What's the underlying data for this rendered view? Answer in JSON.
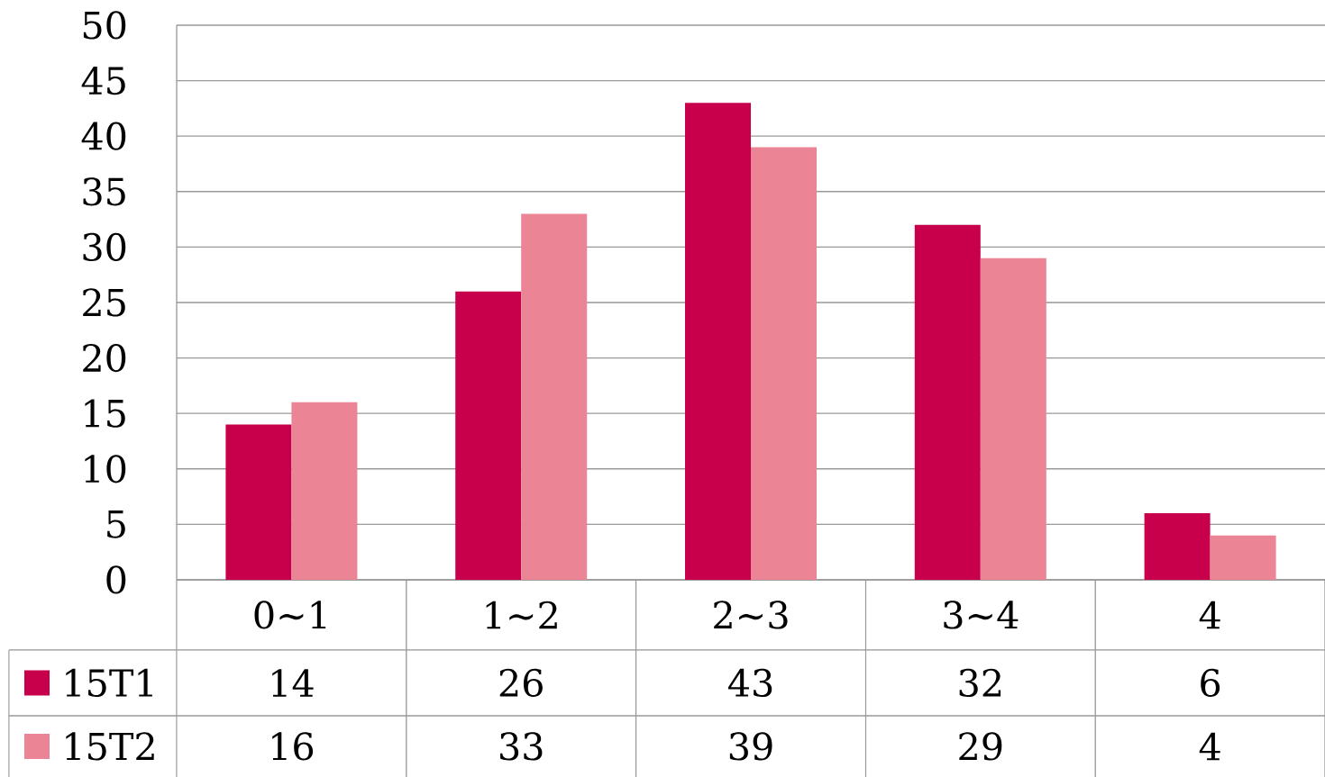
{
  "chart_data": {
    "type": "bar",
    "categories": [
      "0∼1",
      "1∼2",
      "2∼3",
      "3∼4",
      "4"
    ],
    "series": [
      {
        "name": "15T1",
        "color": "#c8004b",
        "values": [
          14,
          26,
          43,
          32,
          6
        ]
      },
      {
        "name": "15T2",
        "color": "#eb8595",
        "values": [
          16,
          33,
          39,
          29,
          4
        ]
      }
    ],
    "ylim": [
      0,
      50
    ],
    "yticks": [
      0,
      5,
      10,
      15,
      20,
      25,
      30,
      35,
      40,
      45,
      50
    ],
    "grid": "y",
    "legend": "bottom",
    "data_labels": true
  }
}
